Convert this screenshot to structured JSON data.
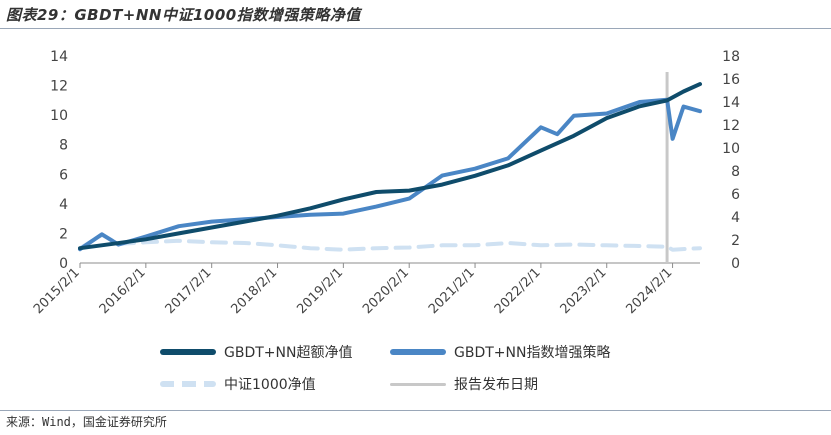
{
  "figure": {
    "title": "图表29：GBDT+NN中证1000指数增强策略净值",
    "source": "来源：Wind，国金证券研究所"
  },
  "chart_data": {
    "type": "line",
    "x_ticks": [
      "2015/2/1",
      "2016/2/1",
      "2017/2/1",
      "2018/2/1",
      "2019/2/1",
      "2020/2/1",
      "2021/2/1",
      "2022/2/1",
      "2023/2/1",
      "2024/2/1"
    ],
    "x_range": [
      "2015/2/1",
      "2024/7/1"
    ],
    "left_axis": {
      "ylim": [
        0,
        14
      ],
      "ticks": [
        0,
        2,
        4,
        6,
        8,
        10,
        12,
        14
      ]
    },
    "right_axis": {
      "ylim": [
        0,
        18
      ],
      "ticks": [
        0,
        2,
        4,
        6,
        8,
        10,
        12,
        14,
        16,
        18
      ]
    },
    "report_date": "2024/1/1",
    "series": [
      {
        "name": "GBDT+NN超额净值",
        "axis": "left",
        "color": "#0f4c6b",
        "points": [
          [
            "2015/2/1",
            1.0
          ],
          [
            "2015/8/1",
            1.3
          ],
          [
            "2016/2/1",
            1.6
          ],
          [
            "2016/8/1",
            2.0
          ],
          [
            "2017/2/1",
            2.4
          ],
          [
            "2017/8/1",
            2.8
          ],
          [
            "2018/2/1",
            3.2
          ],
          [
            "2018/8/1",
            3.7
          ],
          [
            "2019/2/1",
            4.3
          ],
          [
            "2019/8/1",
            4.8
          ],
          [
            "2020/2/1",
            4.9
          ],
          [
            "2020/8/1",
            5.3
          ],
          [
            "2021/2/1",
            5.9
          ],
          [
            "2021/8/1",
            6.6
          ],
          [
            "2022/2/1",
            7.6
          ],
          [
            "2022/8/1",
            8.6
          ],
          [
            "2023/2/1",
            9.8
          ],
          [
            "2023/8/1",
            10.6
          ],
          [
            "2024/1/1",
            11.0
          ],
          [
            "2024/4/1",
            11.6
          ],
          [
            "2024/7/1",
            12.1
          ]
        ]
      },
      {
        "name": "GBDT+NN指数增强策略",
        "axis": "right",
        "color": "#4a86c5",
        "points": [
          [
            "2015/2/1",
            1.2
          ],
          [
            "2015/6/1",
            2.5
          ],
          [
            "2015/9/1",
            1.6
          ],
          [
            "2016/2/1",
            2.3
          ],
          [
            "2016/8/1",
            3.2
          ],
          [
            "2017/2/1",
            3.6
          ],
          [
            "2017/8/1",
            3.8
          ],
          [
            "2018/2/1",
            4.0
          ],
          [
            "2018/8/1",
            4.2
          ],
          [
            "2019/2/1",
            4.3
          ],
          [
            "2019/8/1",
            4.9
          ],
          [
            "2020/2/1",
            5.6
          ],
          [
            "2020/8/1",
            7.6
          ],
          [
            "2021/2/1",
            8.2
          ],
          [
            "2021/8/1",
            9.1
          ],
          [
            "2022/2/1",
            11.8
          ],
          [
            "2022/5/1",
            11.2
          ],
          [
            "2022/8/1",
            12.8
          ],
          [
            "2023/2/1",
            13.0
          ],
          [
            "2023/8/1",
            14.0
          ],
          [
            "2024/1/1",
            14.2
          ],
          [
            "2024/2/1",
            10.8
          ],
          [
            "2024/4/1",
            13.6
          ],
          [
            "2024/7/1",
            13.2
          ]
        ]
      },
      {
        "name": "中证1000净值",
        "axis": "left",
        "color": "#cfe1f2",
        "dashed": true,
        "points": [
          [
            "2015/2/1",
            1.0
          ],
          [
            "2015/6/1",
            1.9
          ],
          [
            "2015/9/1",
            1.3
          ],
          [
            "2016/2/1",
            1.4
          ],
          [
            "2016/8/1",
            1.5
          ],
          [
            "2017/2/1",
            1.4
          ],
          [
            "2017/8/1",
            1.35
          ],
          [
            "2018/2/1",
            1.2
          ],
          [
            "2018/8/1",
            1.0
          ],
          [
            "2019/2/1",
            0.9
          ],
          [
            "2019/8/1",
            1.0
          ],
          [
            "2020/2/1",
            1.05
          ],
          [
            "2020/8/1",
            1.2
          ],
          [
            "2021/2/1",
            1.2
          ],
          [
            "2021/8/1",
            1.35
          ],
          [
            "2022/2/1",
            1.2
          ],
          [
            "2022/8/1",
            1.25
          ],
          [
            "2023/2/1",
            1.2
          ],
          [
            "2023/8/1",
            1.15
          ],
          [
            "2024/1/1",
            1.1
          ],
          [
            "2024/2/1",
            0.9
          ],
          [
            "2024/7/1",
            1.0
          ]
        ]
      },
      {
        "name": "报告发布日期",
        "color": "#c8c8c8"
      }
    ]
  }
}
